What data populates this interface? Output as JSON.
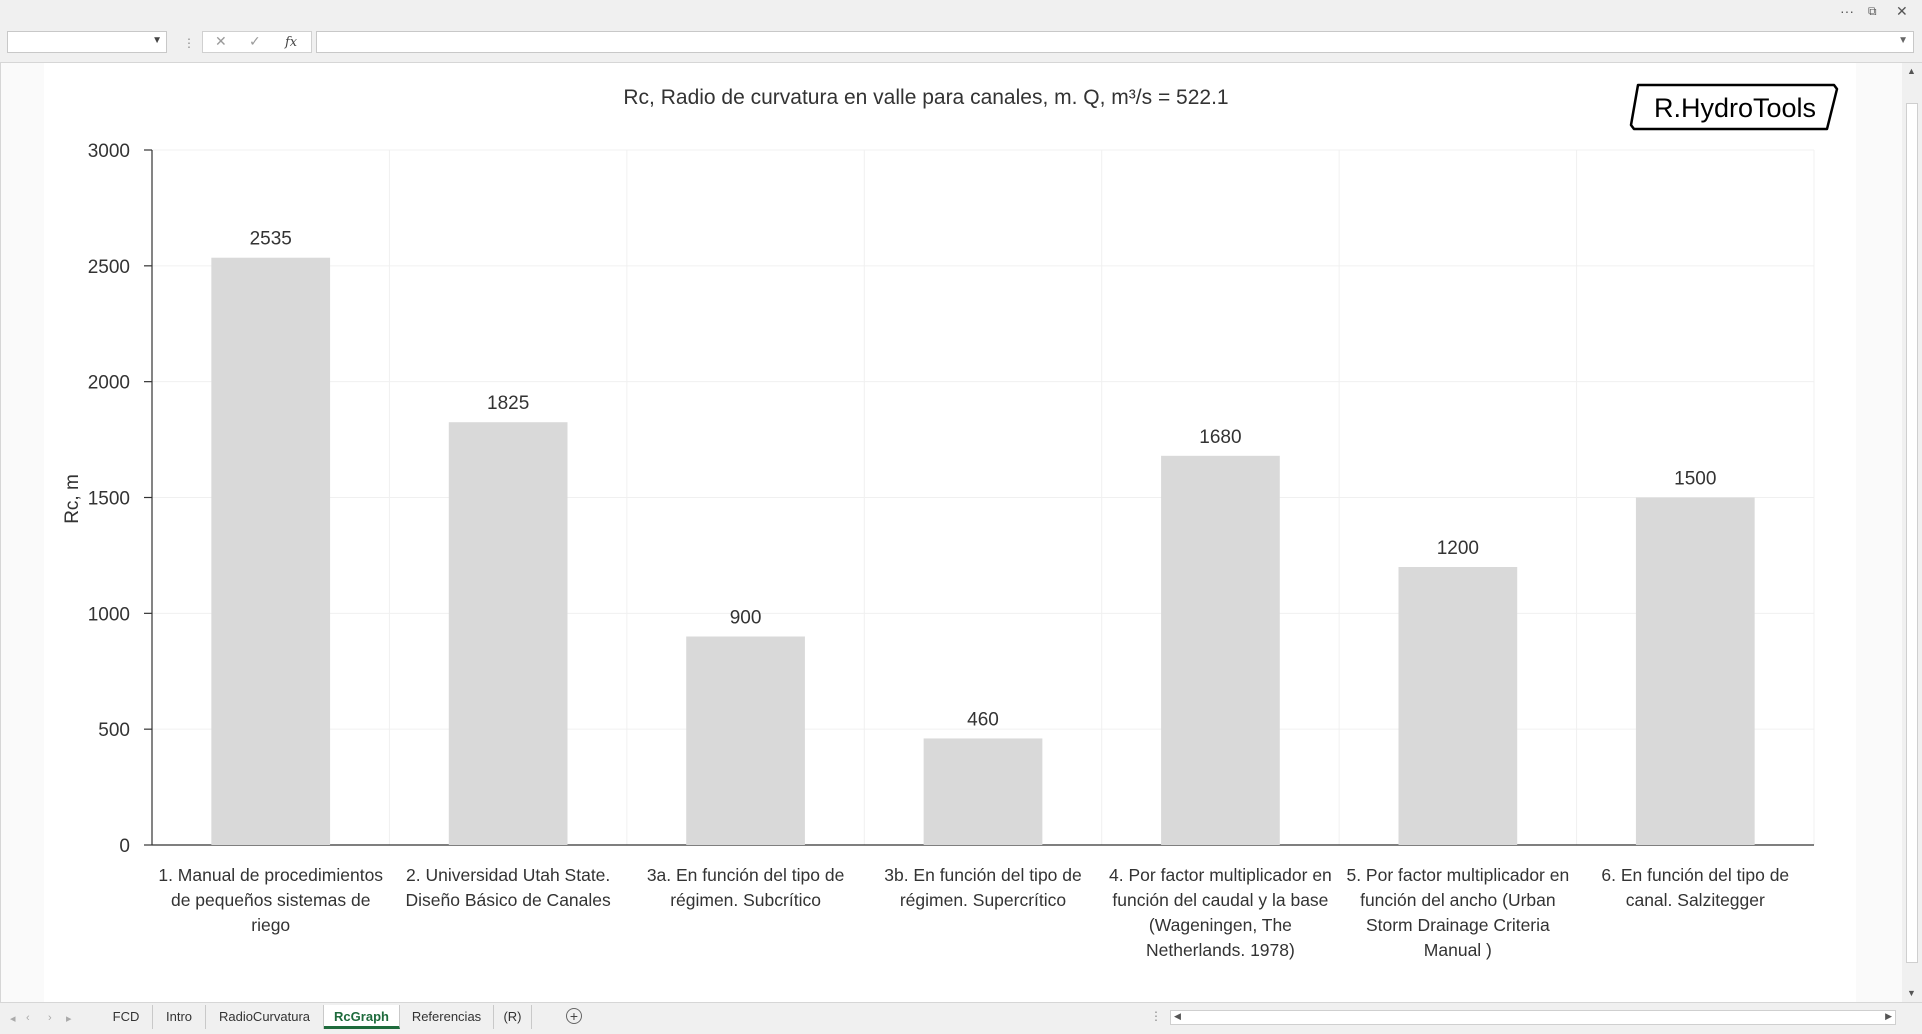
{
  "window": {
    "more_icon": "ellipsis-icon",
    "restore_glyph": "⧉",
    "close_glyph": "✕"
  },
  "formula_bar": {
    "name_box_value": "",
    "formula_value": "",
    "fx_label": "fx"
  },
  "chart_data": {
    "type": "bar",
    "title": "Rc, Radio de curvatura en valle para canales, m. Q, m³/s = 522.1",
    "ylabel": "Rc, m",
    "ylim": [
      0,
      3000
    ],
    "yticks": [
      0,
      500,
      1000,
      1500,
      2000,
      2500,
      3000
    ],
    "categories": [
      [
        "1. Manual de procedimientos",
        "de pequeños sistemas de",
        "riego"
      ],
      [
        "2. Universidad Utah State.",
        "Diseño Básico de Canales"
      ],
      [
        "3a. En función del tipo de",
        "régimen. Subcrítico"
      ],
      [
        "3b. En función del tipo de",
        "régimen. Supercrítico"
      ],
      [
        "4. Por factor multiplicador en",
        "función del caudal y la base",
        "(Wageningen, The",
        "Netherlands. 1978)"
      ],
      [
        "5. Por factor multiplicador en",
        "función del ancho (Urban",
        "Storm Drainage Criteria",
        "Manual )"
      ],
      [
        "6. En función del tipo de",
        "canal. Salzitegger"
      ]
    ],
    "values": [
      2535,
      1825,
      900,
      460,
      1680,
      1200,
      1500
    ],
    "bar_color": "#d9d9d9",
    "grid": true,
    "data_labels": true
  },
  "logo": {
    "text": "R.HydroTools"
  },
  "sheet_tabs": [
    {
      "label": "FCD",
      "active": false
    },
    {
      "label": "Intro",
      "active": false
    },
    {
      "label": "RadioCurvatura",
      "active": false
    },
    {
      "label": "RcGraph",
      "active": true
    },
    {
      "label": "Referencias",
      "active": false
    },
    {
      "label": "(R)",
      "active": false
    }
  ],
  "accent_color": "#1e6b3c"
}
